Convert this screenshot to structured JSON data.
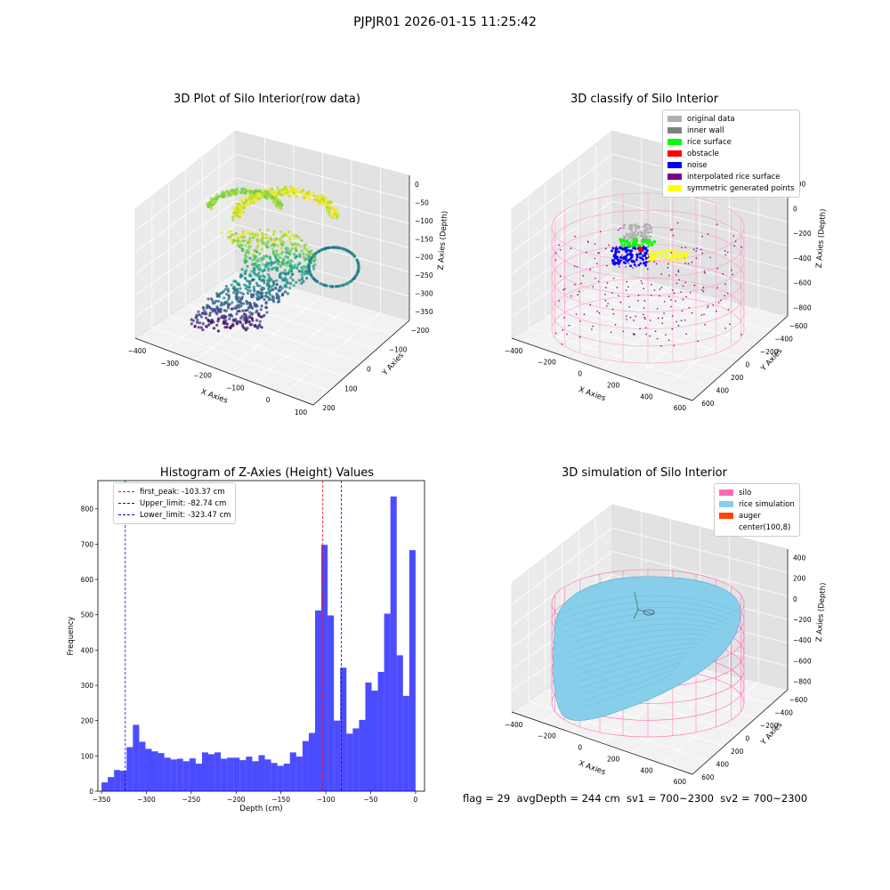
{
  "suptitle": "PJPJR01 2026-01-15 11:25:42",
  "panels": {
    "raw": {
      "title": "3D Plot of Silo Interior(row data)",
      "xlabel": "X Axies",
      "ylabel": "Y Axies",
      "zlabel": "Z Axies (Depth)",
      "xticks": [
        "−400",
        "−300",
        "−200",
        "−100",
        "0",
        "100"
      ],
      "yticks": [
        "200",
        "100",
        "0",
        "−100",
        "−200"
      ],
      "zticks": [
        "0",
        "−50",
        "−100",
        "−150",
        "−200",
        "−250",
        "−300",
        "−350"
      ],
      "colormap": "viridis"
    },
    "classify": {
      "title": "3D classify of Silo Interior",
      "xlabel": "X Axies",
      "ylabel": "Y Axies",
      "zlabel": "Z Axies (Depth)",
      "xticks": [
        "−400",
        "−200",
        "0",
        "200",
        "400",
        "600"
      ],
      "yticks": [
        "600",
        "400",
        "200",
        "0",
        "−200",
        "−400",
        "−600"
      ],
      "zticks": [
        "200",
        "0",
        "−200",
        "−400",
        "−600",
        "−800"
      ],
      "legend": [
        {
          "label": "original data",
          "color": "#b0b0b0"
        },
        {
          "label": "inner wall",
          "color": "#808080"
        },
        {
          "label": "rice surface",
          "color": "#00ff00"
        },
        {
          "label": "obstacle",
          "color": "#ff0000"
        },
        {
          "label": "noise",
          "color": "#0000ff"
        },
        {
          "label": "interpolated rice surface",
          "color": "#800080"
        },
        {
          "label": "symmetric generated points",
          "color": "#ffff00"
        }
      ]
    },
    "simulation": {
      "title": "3D simulation of Silo Interior",
      "xlabel": "X Axies",
      "ylabel": "Y Axies",
      "zlabel": "Z Axies (Depth)",
      "xticks": [
        "−400",
        "−200",
        "0",
        "200",
        "400",
        "600"
      ],
      "yticks": [
        "600",
        "400",
        "200",
        "0",
        "−200",
        "−400",
        "−600"
      ],
      "zticks": [
        "400",
        "200",
        "0",
        "−200",
        "−400",
        "−600",
        "−800"
      ],
      "legend": [
        {
          "label": "silo",
          "color": "#ff69b4"
        },
        {
          "label": "rice simulation",
          "color": "#87ceeb"
        },
        {
          "label": "auger",
          "color": "#ff4500"
        },
        {
          "label": "center(100,8)",
          "color": "#ffffff"
        }
      ]
    }
  },
  "footer": "flag = 29  avgDepth = 244 cm  sv1 = 700~2300  sv2 = 700~2300",
  "chart_data": {
    "type": "bar",
    "title": "Histogram of Z-Axies (Height) Values",
    "xlabel": "Depth (cm)",
    "ylabel": "Frequency",
    "xlim": [
      -354,
      10
    ],
    "ylim": [
      0,
      880
    ],
    "xticks": [
      -350,
      -300,
      -250,
      -200,
      -150,
      -100,
      -50,
      0
    ],
    "yticks": [
      0,
      100,
      200,
      300,
      400,
      500,
      600,
      700,
      800
    ],
    "bar_color": "#0000ff",
    "bin_width": 7,
    "bin_start": -350,
    "values": [
      25,
      40,
      60,
      58,
      125,
      188,
      140,
      120,
      113,
      108,
      95,
      90,
      92,
      85,
      93,
      78,
      110,
      105,
      110,
      92,
      95,
      95,
      88,
      98,
      85,
      102,
      90,
      80,
      72,
      78,
      110,
      98,
      142,
      165,
      512,
      698,
      498,
      200,
      350,
      163,
      178,
      202,
      308,
      285,
      338,
      503,
      835,
      385,
      270,
      683
    ],
    "vlines": [
      {
        "label": "first_peak: -103.37 cm",
        "x": -103.37,
        "color": "#ff0000"
      },
      {
        "label": "Upper_limit: -82.74 cm",
        "x": -82.74,
        "color": "#0000ff"
      },
      {
        "label": "Lower_limit: -323.47 cm",
        "x": -323.47,
        "color": "#0000ff"
      }
    ]
  }
}
